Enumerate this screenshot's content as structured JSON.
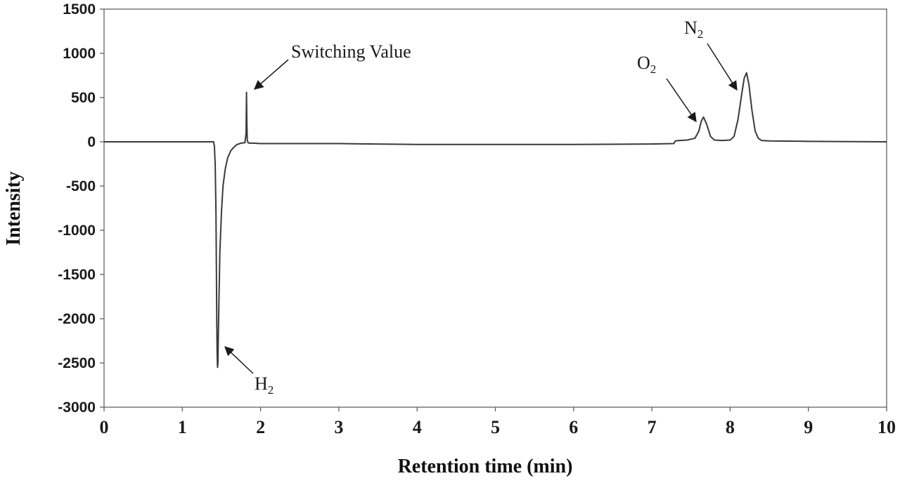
{
  "chart_data": {
    "type": "line",
    "title": "",
    "xlabel": "Retention time (min)",
    "ylabel": "Intensity",
    "xlim": [
      0,
      10
    ],
    "ylim": [
      -3000,
      1500
    ],
    "xticks": [
      "0",
      "1",
      "2",
      "3",
      "4",
      "5",
      "6",
      "7",
      "8",
      "9",
      "10"
    ],
    "yticks": [
      "1500",
      "1000",
      "500",
      "0",
      "-500",
      "-1000",
      "-1500",
      "-2000",
      "-2500",
      "-3000"
    ],
    "grid": false,
    "legend": "none",
    "line_color": "#3a3a3a",
    "series": [
      {
        "x": [
          0,
          1.4,
          1.41,
          1.42,
          1.43,
          1.435,
          1.44,
          1.445,
          1.45,
          1.455,
          1.46,
          1.47,
          1.48,
          1.5,
          1.52,
          1.55,
          1.58,
          1.62,
          1.66,
          1.7,
          1.75,
          1.8,
          1.815,
          1.82,
          1.825,
          1.83,
          1.84,
          1.86,
          1.9,
          2.0,
          3.0,
          4.0,
          5.0,
          6.0,
          7.0,
          7.28,
          7.3,
          7.35,
          7.45,
          7.55,
          7.6,
          7.63,
          7.66,
          7.7,
          7.75,
          7.8,
          7.9,
          8.0,
          8.05,
          8.1,
          8.15,
          8.18,
          8.21,
          8.24,
          8.28,
          8.32,
          8.36,
          8.4,
          8.5,
          9.0,
          10.0
        ],
        "values": [
          0,
          0,
          -50,
          -250,
          -800,
          -1400,
          -2000,
          -2400,
          -2550,
          -2500,
          -2200,
          -1700,
          -1250,
          -800,
          -500,
          -300,
          -180,
          -100,
          -60,
          -30,
          -15,
          -10,
          100,
          560,
          200,
          20,
          -10,
          -15,
          -15,
          -20,
          -20,
          -30,
          -30,
          -30,
          -25,
          -20,
          10,
          15,
          20,
          40,
          120,
          230,
          280,
          200,
          60,
          20,
          15,
          20,
          60,
          250,
          550,
          720,
          780,
          650,
          350,
          120,
          40,
          15,
          10,
          5,
          0
        ]
      }
    ],
    "annotations": {
      "switching": {
        "text": "Switching Value",
        "x": 1.83,
        "y": 560
      },
      "h2": {
        "main": "H",
        "sub": "2",
        "x": 1.46,
        "y": -2550
      },
      "o2": {
        "main": "O",
        "sub": "2",
        "x": 7.66,
        "y": 280
      },
      "n2": {
        "main": "N",
        "sub": "2",
        "x": 8.2,
        "y": 780
      }
    }
  }
}
